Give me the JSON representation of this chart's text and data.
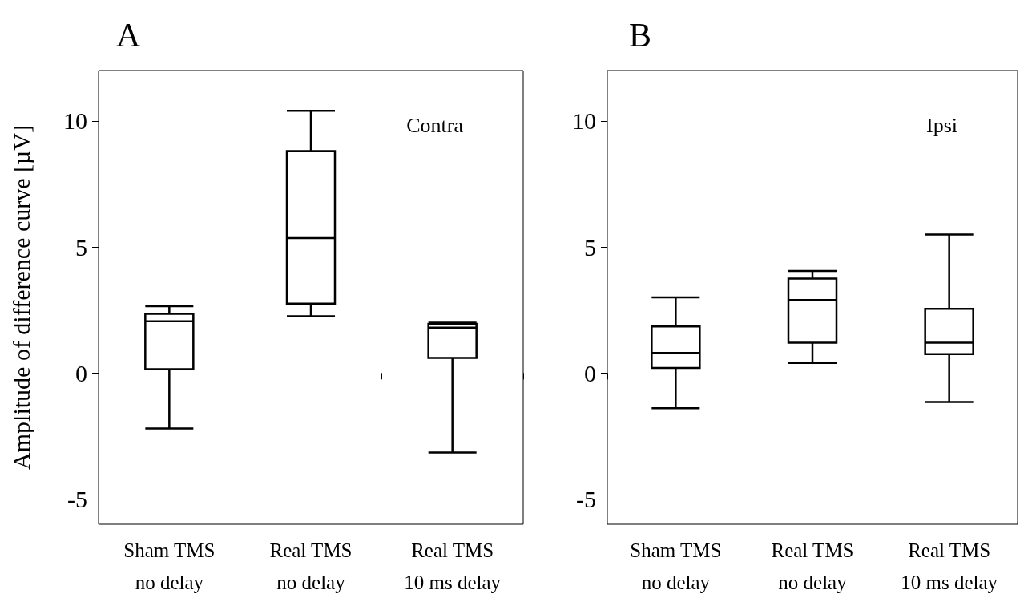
{
  "chart_data": [
    {
      "type": "box",
      "title": "A",
      "ylabel": "Amplitude of difference curve [µV]",
      "annotations": [
        "Contra"
      ],
      "categories": [
        "Sham TMS\nno delay",
        "Real TMS\nno delay",
        "Real TMS\n10 ms delay"
      ],
      "color": "#000000",
      "boxes": [
        {
          "low": -2.2,
          "q1": 0.15,
          "median": 2.05,
          "q3": 2.35,
          "high": 2.65
        },
        {
          "low": 2.25,
          "q1": 2.75,
          "median": 5.35,
          "q3": 8.8,
          "high": 10.4
        },
        {
          "low": -3.15,
          "q1": 0.6,
          "median": 1.8,
          "q3": 1.95,
          "high": 2.0
        }
      ],
      "ylim": [
        -6,
        12
      ],
      "yticks": [
        -5,
        0,
        5,
        10
      ],
      "grid": false
    },
    {
      "type": "box",
      "title": "B",
      "annotations": [
        "Ipsi"
      ],
      "categories": [
        "Sham TMS\nno delay",
        "Real TMS\nno delay",
        "Real TMS\n10 ms delay"
      ],
      "color": "#000000",
      "boxes": [
        {
          "low": -1.4,
          "q1": 0.2,
          "median": 0.8,
          "q3": 1.85,
          "high": 3.0
        },
        {
          "low": 0.4,
          "q1": 1.2,
          "median": 2.9,
          "q3": 3.75,
          "high": 4.05
        },
        {
          "low": -1.15,
          "q1": 0.75,
          "median": 1.2,
          "q3": 2.55,
          "high": 5.5
        }
      ],
      "ylim": [
        -6,
        12
      ],
      "yticks": [
        -5,
        0,
        5,
        10
      ],
      "grid": false
    }
  ]
}
